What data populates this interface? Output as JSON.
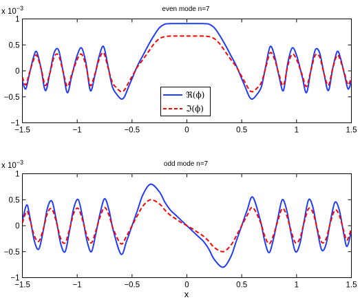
{
  "chart_data": [
    {
      "type": "line",
      "title": "even mode n=7",
      "xlabel": "",
      "ylabel": "",
      "xlim": [
        -1.5,
        1.5
      ],
      "ylim": [
        -1,
        1
      ],
      "y_scale_label": "x 10",
      "y_scale_exponent": "−3",
      "xticks": [
        -1.5,
        -1,
        -0.5,
        0,
        0.5,
        1,
        1.5
      ],
      "xtick_labels": [
        "−1.5",
        "−1",
        "−0.5",
        "0",
        "0.5",
        "1",
        "1.5"
      ],
      "yticks": [
        -1,
        -0.5,
        0,
        0.5,
        1
      ],
      "ytick_labels": [
        "−1",
        "−0.5",
        "0",
        "0.5",
        "1"
      ],
      "grid": false,
      "legend": {
        "position": "bottom-center",
        "entries": [
          "ℜ(ϕ)",
          "ℑ(ϕ)"
        ]
      },
      "series": [
        {
          "name": "ℜ(ϕ)",
          "color": "#1f3bff",
          "style": "solid",
          "x": [
            -1.5,
            -1.47,
            -1.44,
            -1.4,
            -1.37,
            -1.33,
            -1.29,
            -1.25,
            -1.21,
            -1.17,
            -1.13,
            -1.09,
            -1.05,
            -1.0,
            -0.96,
            -0.92,
            -0.88,
            -0.84,
            -0.8,
            -0.76,
            -0.72,
            -0.68,
            -0.64,
            -0.6,
            -0.57,
            -0.53,
            -0.49,
            -0.45,
            -0.4,
            -0.35,
            -0.3,
            -0.25,
            -0.2,
            -0.15,
            -0.1,
            0.0,
            0.1,
            0.15,
            0.2,
            0.25,
            0.3,
            0.35,
            0.4,
            0.45,
            0.49,
            0.53,
            0.57,
            0.6,
            0.64,
            0.68,
            0.72,
            0.76,
            0.8,
            0.84,
            0.88,
            0.92,
            0.96,
            1.0,
            1.05,
            1.09,
            1.13,
            1.17,
            1.21,
            1.25,
            1.29,
            1.33,
            1.37,
            1.4,
            1.44,
            1.47,
            1.5
          ],
          "y": [
            -0.2,
            -0.35,
            -0.1,
            0.25,
            0.37,
            0.05,
            -0.38,
            -0.05,
            0.35,
            0.4,
            0.0,
            -0.42,
            -0.1,
            0.3,
            0.44,
            0.15,
            -0.38,
            -0.1,
            0.28,
            0.47,
            0.1,
            -0.3,
            -0.45,
            -0.54,
            -0.5,
            -0.3,
            -0.1,
            0.1,
            0.3,
            0.5,
            0.68,
            0.83,
            0.9,
            0.91,
            0.91,
            0.91,
            0.91,
            0.91,
            0.9,
            0.83,
            0.68,
            0.5,
            0.3,
            0.1,
            -0.1,
            -0.3,
            -0.5,
            -0.54,
            -0.45,
            -0.3,
            0.1,
            0.47,
            0.28,
            -0.1,
            -0.38,
            0.15,
            0.44,
            0.3,
            -0.1,
            -0.42,
            0.0,
            0.4,
            0.35,
            -0.05,
            -0.38,
            0.05,
            0.37,
            0.25,
            -0.1,
            -0.35,
            -0.2
          ]
        },
        {
          "name": "ℑ(ϕ)",
          "color": "#ff0000",
          "style": "dashed",
          "x": [
            -1.5,
            -1.47,
            -1.44,
            -1.4,
            -1.37,
            -1.33,
            -1.29,
            -1.25,
            -1.21,
            -1.17,
            -1.13,
            -1.09,
            -1.05,
            -1.0,
            -0.96,
            -0.92,
            -0.88,
            -0.84,
            -0.8,
            -0.76,
            -0.72,
            -0.68,
            -0.64,
            -0.6,
            -0.57,
            -0.53,
            -0.49,
            -0.45,
            -0.4,
            -0.35,
            -0.3,
            -0.25,
            -0.2,
            -0.15,
            -0.1,
            0.0,
            0.1,
            0.15,
            0.2,
            0.25,
            0.3,
            0.35,
            0.4,
            0.45,
            0.49,
            0.53,
            0.57,
            0.6,
            0.64,
            0.68,
            0.72,
            0.76,
            0.8,
            0.84,
            0.88,
            0.92,
            0.96,
            1.0,
            1.05,
            1.09,
            1.13,
            1.17,
            1.21,
            1.25,
            1.29,
            1.33,
            1.37,
            1.4,
            1.44,
            1.47,
            1.5
          ],
          "y": [
            -0.12,
            -0.27,
            -0.07,
            0.2,
            0.3,
            0.05,
            -0.28,
            -0.05,
            0.27,
            0.3,
            0.0,
            -0.3,
            -0.07,
            0.22,
            0.32,
            0.1,
            -0.28,
            -0.07,
            0.22,
            0.35,
            0.07,
            -0.22,
            -0.33,
            -0.4,
            -0.37,
            -0.22,
            -0.07,
            0.08,
            0.22,
            0.37,
            0.52,
            0.62,
            0.66,
            0.67,
            0.67,
            0.67,
            0.67,
            0.67,
            0.66,
            0.62,
            0.52,
            0.37,
            0.22,
            0.08,
            -0.07,
            -0.22,
            -0.37,
            -0.4,
            -0.33,
            -0.22,
            0.07,
            0.35,
            0.22,
            -0.07,
            -0.28,
            0.1,
            0.32,
            0.22,
            -0.07,
            -0.3,
            0.0,
            0.3,
            0.27,
            -0.05,
            -0.28,
            0.05,
            0.3,
            0.2,
            -0.07,
            -0.27,
            -0.12
          ]
        }
      ]
    },
    {
      "type": "line",
      "title": "odd mode n=7",
      "xlabel": "x",
      "ylabel": "",
      "xlim": [
        -1.5,
        1.5
      ],
      "ylim": [
        -1,
        1
      ],
      "y_scale_label": "x 10",
      "y_scale_exponent": "−3",
      "xticks": [
        -1.5,
        -1,
        -0.5,
        0,
        0.5,
        1,
        1.5
      ],
      "xtick_labels": [
        "−1.5",
        "−1",
        "−0.5",
        "0",
        "0.5",
        "1",
        "1.5"
      ],
      "yticks": [
        -1,
        -0.5,
        0,
        0.5,
        1
      ],
      "ytick_labels": [
        "−1",
        "−0.5",
        "0",
        "0.5",
        "1"
      ],
      "grid": false,
      "series": [
        {
          "color": "#1f3bff",
          "style": "solid",
          "x": [
            -1.5,
            -1.46,
            -1.43,
            -1.39,
            -1.35,
            -1.31,
            -1.27,
            -1.23,
            -1.19,
            -1.15,
            -1.11,
            -1.07,
            -1.03,
            -0.99,
            -0.95,
            -0.91,
            -0.87,
            -0.83,
            -0.79,
            -0.75,
            -0.71,
            -0.67,
            -0.6,
            -0.55,
            -0.5,
            -0.45,
            -0.4,
            -0.33,
            -0.25,
            -0.2,
            -0.15,
            -0.1,
            -0.05,
            0.0,
            0.05,
            0.1,
            0.15,
            0.2,
            0.25,
            0.33,
            0.4,
            0.45,
            0.5,
            0.55,
            0.6,
            0.67,
            0.71,
            0.75,
            0.79,
            0.83,
            0.87,
            0.91,
            0.95,
            0.99,
            1.03,
            1.07,
            1.11,
            1.15,
            1.19,
            1.23,
            1.27,
            1.31,
            1.35,
            1.39,
            1.43,
            1.46,
            1.5
          ],
          "y": [
            0.1,
            0.4,
            0.15,
            -0.3,
            -0.45,
            -0.1,
            0.35,
            0.47,
            0.1,
            -0.35,
            -0.5,
            -0.1,
            0.35,
            0.5,
            0.15,
            -0.3,
            -0.5,
            -0.15,
            0.25,
            0.52,
            0.3,
            -0.1,
            -0.55,
            -0.3,
            0.0,
            0.3,
            0.6,
            0.8,
            0.65,
            0.45,
            0.3,
            0.2,
            0.1,
            0.0,
            -0.1,
            -0.2,
            -0.3,
            -0.45,
            -0.65,
            -0.8,
            -0.6,
            -0.3,
            0.0,
            0.3,
            0.55,
            0.1,
            -0.3,
            -0.52,
            -0.25,
            0.15,
            0.5,
            0.3,
            -0.15,
            -0.5,
            -0.35,
            0.1,
            0.5,
            0.35,
            -0.1,
            -0.47,
            -0.35,
            0.1,
            0.45,
            0.3,
            -0.15,
            -0.4,
            -0.1
          ]
        },
        {
          "color": "#ff0000",
          "style": "dashed",
          "x": [
            -1.5,
            -1.46,
            -1.43,
            -1.39,
            -1.35,
            -1.31,
            -1.27,
            -1.23,
            -1.19,
            -1.15,
            -1.11,
            -1.07,
            -1.03,
            -0.99,
            -0.95,
            -0.91,
            -0.87,
            -0.83,
            -0.79,
            -0.75,
            -0.71,
            -0.67,
            -0.6,
            -0.55,
            -0.5,
            -0.45,
            -0.4,
            -0.33,
            -0.25,
            -0.2,
            -0.15,
            -0.1,
            -0.05,
            0.0,
            0.05,
            0.1,
            0.15,
            0.2,
            0.25,
            0.33,
            0.4,
            0.45,
            0.5,
            0.55,
            0.6,
            0.67,
            0.71,
            0.75,
            0.79,
            0.83,
            0.87,
            0.91,
            0.95,
            0.99,
            1.03,
            1.07,
            1.11,
            1.15,
            1.19,
            1.23,
            1.27,
            1.31,
            1.35,
            1.39,
            1.43,
            1.46,
            1.5
          ],
          "y": [
            0.05,
            0.28,
            0.1,
            -0.2,
            -0.3,
            -0.07,
            0.25,
            0.32,
            0.07,
            -0.25,
            -0.33,
            -0.07,
            0.25,
            0.33,
            0.1,
            -0.2,
            -0.33,
            -0.1,
            0.18,
            0.35,
            0.2,
            -0.07,
            -0.35,
            -0.2,
            0.0,
            0.2,
            0.38,
            0.5,
            0.42,
            0.3,
            0.2,
            0.13,
            0.06,
            0.0,
            -0.06,
            -0.13,
            -0.2,
            -0.3,
            -0.42,
            -0.5,
            -0.38,
            -0.2,
            0.0,
            0.2,
            0.35,
            0.07,
            -0.2,
            -0.35,
            -0.18,
            0.1,
            0.33,
            0.2,
            -0.1,
            -0.33,
            -0.25,
            0.07,
            0.33,
            0.25,
            -0.07,
            -0.32,
            -0.25,
            0.07,
            0.3,
            0.2,
            -0.1,
            -0.28,
            -0.05
          ]
        }
      ]
    }
  ]
}
